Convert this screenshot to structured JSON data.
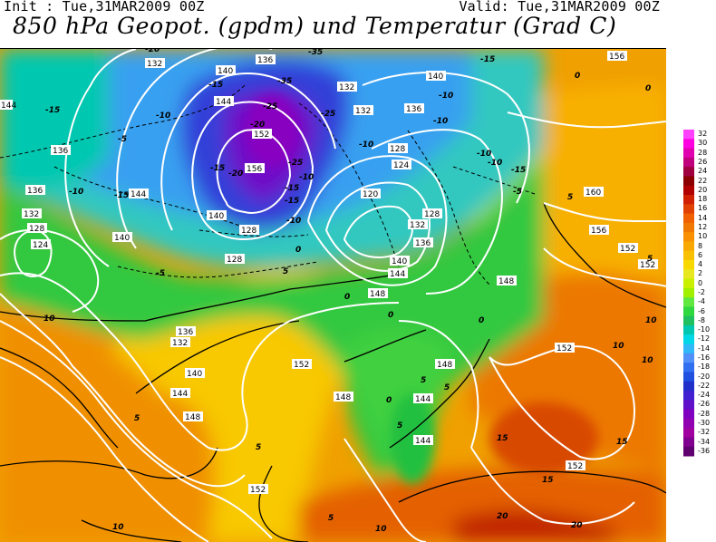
{
  "header": {
    "init": "Init : Tue,31MAR2009 00Z",
    "valid": "Valid: Tue,31MAR2009 00Z",
    "title": "850 hPa Geopot. (gpdm) und Temperatur (Grad C)"
  },
  "colorbar": {
    "labels": [
      "32",
      "30",
      "28",
      "26",
      "24",
      "22",
      "20",
      "18",
      "16",
      "14",
      "12",
      "10",
      "8",
      "6",
      "4",
      "2",
      "0",
      "-2",
      "-4",
      "-6",
      "-8",
      "-10",
      "-12",
      "-14",
      "-16",
      "-18",
      "-20",
      "-22",
      "-24",
      "-26",
      "-28",
      "-30",
      "-32",
      "-34",
      "-36"
    ],
    "colors": [
      "#ff40ff",
      "#ff00e0",
      "#e000b0",
      "#c0007c",
      "#a00040",
      "#8b0000",
      "#b00000",
      "#d02000",
      "#e04000",
      "#f06000",
      "#f07800",
      "#f89000",
      "#f8a800",
      "#f8c000",
      "#f8d800",
      "#e8e820",
      "#c8f000",
      "#a0f000",
      "#60e840",
      "#30d840",
      "#20c060",
      "#00c8b0",
      "#00d8e8",
      "#30b8f8",
      "#5090f8",
      "#3070f0",
      "#2050e0",
      "#2030c8",
      "#4020d0",
      "#6010c8",
      "#8000c0",
      "#9000b0",
      "#a000a0",
      "#800090",
      "#600070"
    ]
  },
  "map": {
    "geopotential_labels": [
      "132",
      "140",
      "136",
      "144",
      "152",
      "128",
      "124",
      "120",
      "148",
      "156",
      "160"
    ],
    "temperature_labels": [
      "-20",
      "-25",
      "-35",
      "-15",
      "-10",
      "-5",
      "0",
      "5",
      "10",
      "15",
      "20"
    ]
  }
}
